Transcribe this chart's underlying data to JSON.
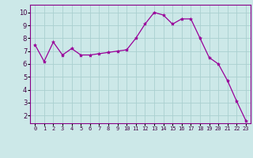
{
  "x": [
    0,
    1,
    2,
    3,
    4,
    5,
    6,
    7,
    8,
    9,
    10,
    11,
    12,
    13,
    14,
    15,
    16,
    17,
    18,
    19,
    20,
    21,
    22,
    23
  ],
  "y": [
    7.5,
    6.2,
    7.7,
    6.7,
    7.2,
    6.7,
    6.7,
    6.8,
    6.9,
    7.0,
    7.1,
    8.0,
    9.1,
    10.0,
    9.8,
    9.1,
    9.5,
    9.5,
    8.0,
    6.5,
    6.0,
    4.7,
    3.1,
    1.6
  ],
  "line_color": "#990099",
  "marker": "*",
  "marker_size": 3,
  "bg_color": "#cce8e8",
  "grid_color": "#aad0d0",
  "xlabel_color": "#ffffff",
  "xlabel_bg": "#770077",
  "xlim": [
    -0.5,
    23.5
  ],
  "ylim": [
    1.4,
    10.6
  ],
  "yticks": [
    2,
    3,
    4,
    5,
    6,
    7,
    8,
    9,
    10
  ],
  "xtick_labels": [
    "0",
    "1",
    "2",
    "3",
    "4",
    "5",
    "6",
    "7",
    "8",
    "9",
    "10",
    "11",
    "12",
    "13",
    "14",
    "15",
    "16",
    "17",
    "18",
    "19",
    "20",
    "21",
    "22",
    "23"
  ]
}
